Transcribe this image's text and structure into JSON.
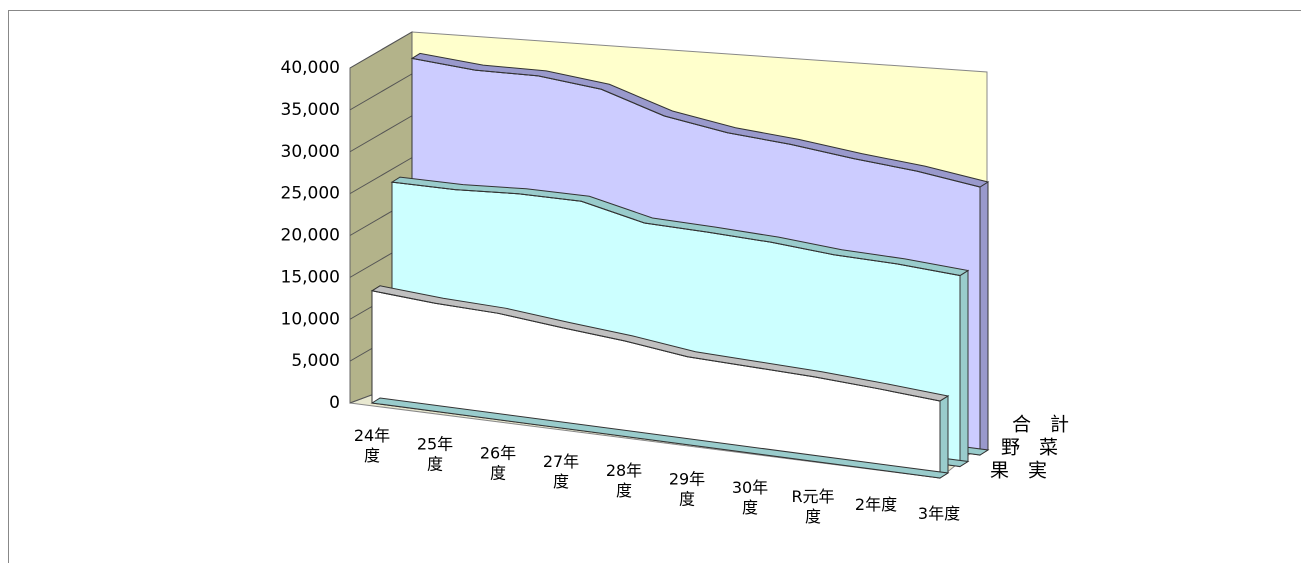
{
  "chart_data": {
    "type": "area3d",
    "categories": [
      "24年度",
      "25年度",
      "26年度",
      "27年度",
      "28年度",
      "29年度",
      "30年度",
      "R元年度",
      "2年度",
      "3年度"
    ],
    "series": [
      {
        "name": "果　実",
        "color": "#ffffff",
        "values": [
          13400,
          12900,
          12700,
          12000,
          11400,
          10500,
          10300,
          10100,
          9700,
          9200
        ]
      },
      {
        "name": "野　菜",
        "color": "#ccffff",
        "values": [
          25000,
          25100,
          25600,
          25700,
          24100,
          24000,
          23800,
          23300,
          23200,
          22800
        ]
      },
      {
        "name": "合　計",
        "color": "#ccccff",
        "values": [
          38400,
          38000,
          38300,
          37700,
          35500,
          34500,
          34100,
          33400,
          32900,
          32000
        ]
      }
    ],
    "ylim": [
      0,
      40000
    ],
    "yticks": [
      0,
      {
        "value": 5000,
        "label": "5,000"
      },
      {
        "value": 10000,
        "label": "10,000"
      },
      {
        "value": 15000,
        "label": "15,000"
      },
      {
        "value": 20000,
        "label": "20,000"
      },
      {
        "value": 25000,
        "label": "25,000"
      },
      {
        "value": 30000,
        "label": "30,000"
      },
      {
        "value": 35000,
        "label": "35,000"
      },
      {
        "value": 40000,
        "label": "40,000"
      }
    ],
    "grid": true
  }
}
